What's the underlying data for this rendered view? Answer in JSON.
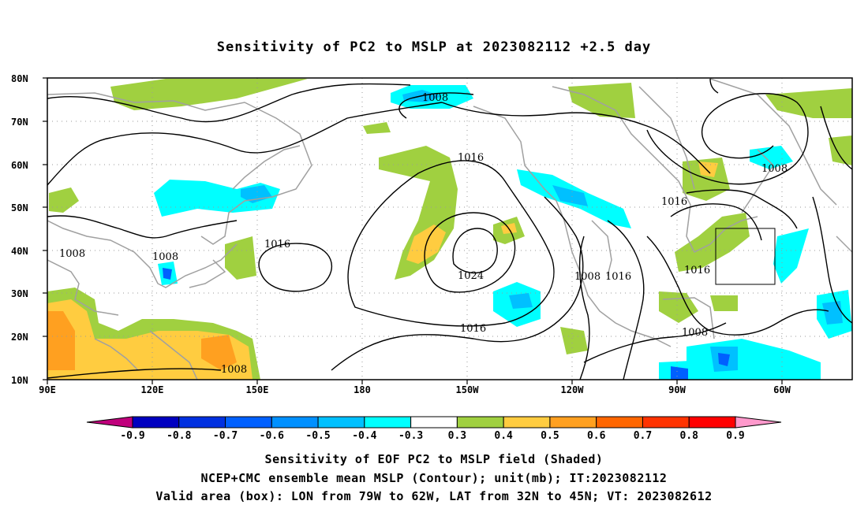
{
  "title": "Sensitivity of PC2 to MSLP at 2023082112 +2.5 day",
  "lat_labels": [
    "80N",
    "70N",
    "60N",
    "50N",
    "40N",
    "30N",
    "20N",
    "10N"
  ],
  "lon_labels": [
    "90E",
    "120E",
    "150E",
    "180",
    "150W",
    "120W",
    "90W",
    "60W"
  ],
  "contour_labels": [
    "1008",
    "1016",
    "1008",
    "1016",
    "1024",
    "1008",
    "1016",
    "1016",
    "1008",
    "1016",
    "1016",
    "1008",
    "1008"
  ],
  "colorbar": {
    "ticks": [
      "-0.9",
      "-0.8",
      "-0.7",
      "-0.6",
      "-0.5",
      "-0.4",
      "-0.3",
      "0.3",
      "0.4",
      "0.5",
      "0.6",
      "0.7",
      "0.8",
      "0.9"
    ],
    "colors": [
      "#c0007c",
      "#0000c0",
      "#0030e0",
      "#0060ff",
      "#0090ff",
      "#00c0ff",
      "#00ffff",
      "#ffffff",
      "#a0d040",
      "#ffcc40",
      "#ffa020",
      "#ff6600",
      "#ff3300",
      "#ff0000",
      "#ff99cc"
    ]
  },
  "valid_box": {
    "lon_from": "79W",
    "lon_to": "62W",
    "lat_from": "32N",
    "lat_to": "45N"
  },
  "footer": {
    "line1": "Sensitivity of EOF PC2 to MSLP field (Shaded)",
    "line2": "NCEP+CMC ensemble mean MSLP (Contour); unit(mb); IT:2023082112",
    "line3": "Valid area (box): LON from 79W to 62W, LAT from 32N to 45N; VT: 2023082612"
  }
}
